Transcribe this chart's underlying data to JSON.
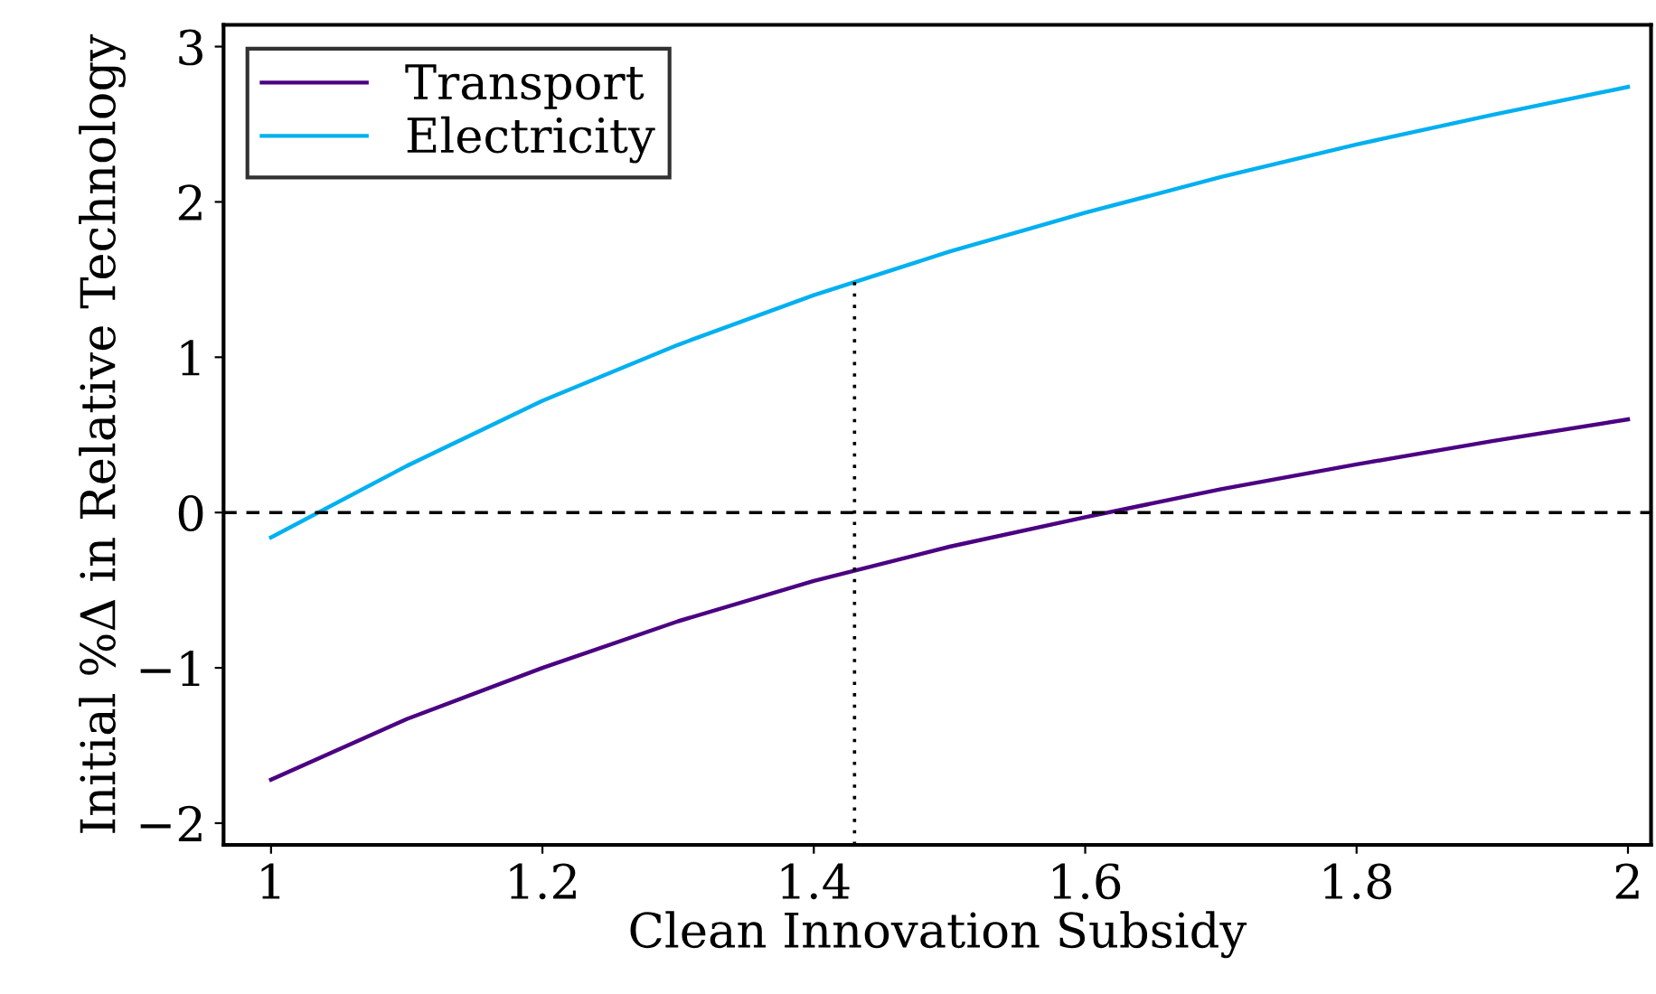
{
  "chart_data": {
    "type": "line",
    "xlabel": "Clean Innovation Subsidy",
    "ylabel": "Initial %Δ in Relative Technology",
    "x": [
      1.0,
      1.1,
      1.2,
      1.3,
      1.4,
      1.5,
      1.6,
      1.7,
      1.8,
      1.9,
      2.0
    ],
    "series": [
      {
        "name": "Transport",
        "color": "#4b0082",
        "values": [
          -1.72,
          -1.33,
          -1.0,
          -0.7,
          -0.44,
          -0.22,
          -0.03,
          0.15,
          0.31,
          0.46,
          0.6
        ]
      },
      {
        "name": "Electricity",
        "color": "#00b0f0",
        "values": [
          -0.16,
          0.3,
          0.72,
          1.08,
          1.4,
          1.68,
          1.93,
          2.16,
          2.37,
          2.56,
          2.74
        ]
      }
    ],
    "xlim": [
      0.965,
      2.017
    ],
    "ylim": [
      -2.14,
      3.14
    ],
    "xticks": [
      1,
      1.2,
      1.4,
      1.6,
      1.8,
      2
    ],
    "yticks": [
      {
        "value": -2,
        "label": "−2"
      },
      {
        "value": -1,
        "label": "−1"
      },
      0,
      1,
      2,
      3
    ],
    "ref_lines": [
      {
        "axis": "y",
        "value": 0,
        "line_style": "dashed",
        "color": "#000000"
      },
      {
        "axis": "x",
        "value": 1.43,
        "line_style": "dotted",
        "color": "#000000"
      }
    ],
    "legend": "top left",
    "grid": false,
    "marker": "none",
    "line_style": "solid"
  }
}
